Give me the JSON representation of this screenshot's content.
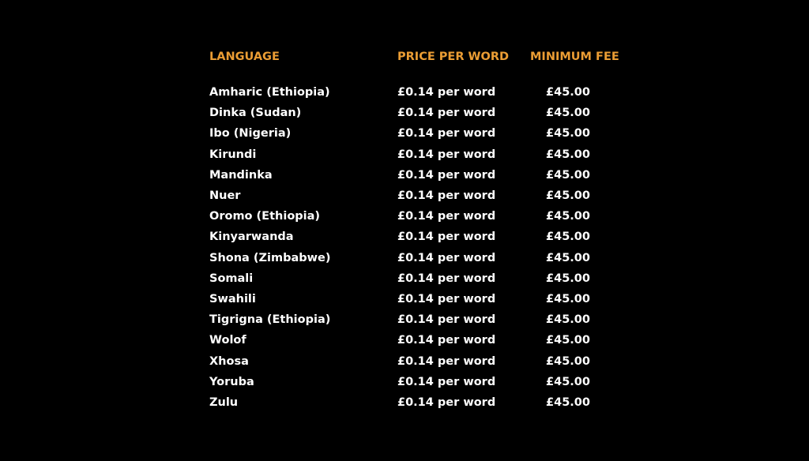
{
  "colors": {
    "background": "#000000",
    "header_text": "#EB9D34",
    "body_text": "#FFFFFF"
  },
  "table": {
    "headers": [
      "LANGUAGE",
      "PRICE PER WORD",
      "MINIMUM FEE"
    ],
    "rows": [
      {
        "language": "Amharic (Ethiopia)",
        "price_per_word": "£0.14 per word",
        "minimum_fee": "£45.00"
      },
      {
        "language": "Dinka (Sudan)",
        "price_per_word": "£0.14 per word",
        "minimum_fee": "£45.00"
      },
      {
        "language": "Ibo (Nigeria)",
        "price_per_word": "£0.14 per word",
        "minimum_fee": "£45.00"
      },
      {
        "language": "Kirundi",
        "price_per_word": "£0.14 per word",
        "minimum_fee": "£45.00"
      },
      {
        "language": "Mandinka",
        "price_per_word": "£0.14 per word",
        "minimum_fee": "£45.00"
      },
      {
        "language": "Nuer",
        "price_per_word": "£0.14 per word",
        "minimum_fee": "£45.00"
      },
      {
        "language": "Oromo (Ethiopia)",
        "price_per_word": "£0.14 per word",
        "minimum_fee": "£45.00"
      },
      {
        "language": "Kinyarwanda",
        "price_per_word": "£0.14 per word",
        "minimum_fee": "£45.00"
      },
      {
        "language": "Shona (Zimbabwe)",
        "price_per_word": "£0.14 per word",
        "minimum_fee": "£45.00"
      },
      {
        "language": "Somali",
        "price_per_word": "£0.14 per word",
        "minimum_fee": "£45.00"
      },
      {
        "language": "Swahili",
        "price_per_word": "£0.14 per word",
        "minimum_fee": "£45.00"
      },
      {
        "language": "Tigrigna (Ethiopia)",
        "price_per_word": "£0.14 per word",
        "minimum_fee": "£45.00"
      },
      {
        "language": "Wolof",
        "price_per_word": "£0.14 per word",
        "minimum_fee": "£45.00"
      },
      {
        "language": "Xhosa",
        "price_per_word": "£0.14 per word",
        "minimum_fee": "£45.00"
      },
      {
        "language": "Yoruba",
        "price_per_word": "£0.14 per word",
        "minimum_fee": "£45.00"
      },
      {
        "language": "Zulu",
        "price_per_word": "£0.14 per word",
        "minimum_fee": "£45.00"
      }
    ]
  }
}
